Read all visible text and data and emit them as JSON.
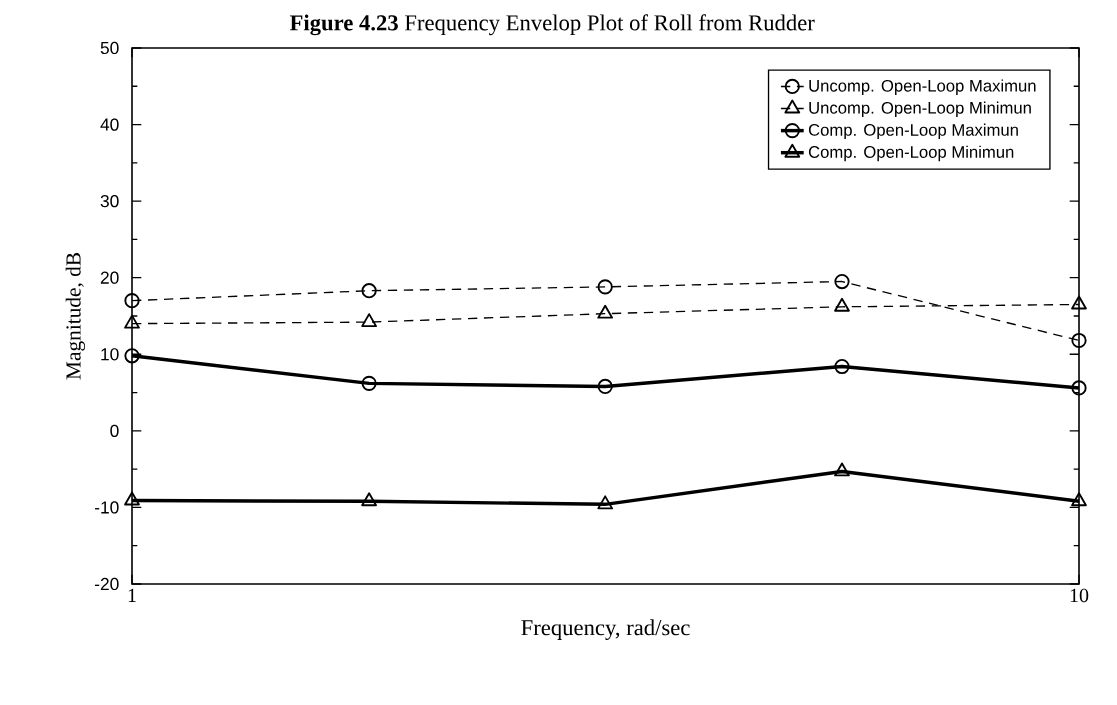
{
  "chart_data": {
    "type": "line",
    "title": "**Figure 4.23** Frequency Envelop Plot of Roll from Rudder",
    "xlabel": "Frequency, rad/sec",
    "ylabel": "Magnitude, dB",
    "log": "x",
    "xlim": [
      1,
      10
    ],
    "xticks": [
      1,
      10
    ],
    "ylim": [
      -20,
      50
    ],
    "yticks": [
      -20,
      -10,
      0,
      10,
      20,
      30,
      40,
      50
    ],
    "grid": false,
    "legend": "top right",
    "x": [
      1,
      1.78,
      3.16,
      5.62,
      10
    ],
    "series": [
      {
        "name": "Uncomp. Open-Loop Maximun",
        "color": "#000000",
        "line_style": "dashed",
        "marker": "circle",
        "values": [
          17,
          18.3,
          18.8,
          19.5,
          11.8
        ]
      },
      {
        "name": "Uncomp. Open-Loop Minimun",
        "color": "#000000",
        "line_style": "dashed",
        "marker": "triangle",
        "values": [
          14,
          14.2,
          15.3,
          16.2,
          16.5
        ]
      },
      {
        "name": "Comp. Open-Loop Maximun",
        "color": "#000000",
        "line_style": "solid",
        "marker": "circle",
        "values": [
          9.8,
          6.2,
          5.8,
          8.4,
          5.6
        ]
      },
      {
        "name": "Comp. Open-Loop Minimun",
        "color": "#000000",
        "line_style": "solid",
        "marker": "triangle",
        "values": [
          -9.1,
          -9.2,
          -9.6,
          -5.3,
          -9.2
        ]
      }
    ]
  }
}
